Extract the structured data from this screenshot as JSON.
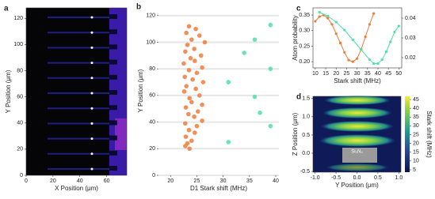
{
  "chart_data": [
    {
      "type": "heatmap",
      "panel": "a",
      "xlabel": "X Position (μm)",
      "ylabel": "Y Position (μm)",
      "xlim": [
        0,
        75
      ],
      "ylim": [
        0,
        128
      ],
      "xticks": [
        0,
        20,
        40,
        60
      ],
      "yticks": [
        0,
        20,
        40,
        60,
        80,
        100,
        120
      ]
    },
    {
      "type": "scatter",
      "panel": "b",
      "xlabel": "D1 Stark shift (MHz)",
      "ylabel": "Y Position (μm)",
      "xlim": [
        17.7,
        40.6
      ],
      "ylim": [
        0,
        127
      ],
      "xticks": [
        20,
        25,
        30,
        35,
        40
      ],
      "yticks": [
        0,
        20,
        40,
        60,
        80,
        100,
        120
      ],
      "grid": true,
      "series": [
        {
          "color": "#f07a3a",
          "x": [
            23.5,
            24.8,
            23,
            25.5,
            24,
            26.5,
            23.2,
            24.5,
            22.8,
            25.8,
            23.8,
            24.6,
            22.5,
            26,
            23.5,
            25,
            22.7,
            24.2,
            26.2,
            23,
            24.8,
            22.6,
            25.5,
            23.6,
            24,
            26,
            22.9,
            25.2,
            23.4,
            24.5,
            26,
            22.8,
            25,
            23.5,
            24.6,
            22.9,
            24,
            23.2,
            22.8,
            23.6
          ],
          "values": [
            112,
            110,
            107,
            105,
            102,
            100,
            98,
            95,
            93,
            90,
            88,
            86,
            84,
            81,
            79,
            77,
            74,
            72,
            70,
            67,
            65,
            63,
            60,
            58,
            55,
            53,
            51,
            48,
            46,
            44,
            41,
            39,
            37,
            34,
            32,
            29,
            26,
            24,
            22,
            20
          ]
        },
        {
          "color": "#4fe0a8",
          "x": [
            39,
            36,
            34,
            39,
            31,
            36,
            37,
            39,
            31
          ],
          "values": [
            113,
            102,
            92,
            80,
            70,
            59,
            47,
            37,
            25
          ]
        }
      ]
    },
    {
      "type": "line",
      "panel": "c",
      "xlabel": "Stark shift (MHz)",
      "ylabel": "Atom probability",
      "xlim": [
        8.9,
        51.4
      ],
      "ylim": [
        0.18,
        0.373
      ],
      "y2lim": [
        0.0148,
        0.0452
      ],
      "xticks": [
        10,
        15,
        20,
        25,
        30,
        35,
        40,
        45,
        50
      ],
      "yticks": [
        {
          "value": 0.2,
          "label": "0.20"
        },
        0.25,
        {
          "value": 0.3,
          "label": "0.30"
        },
        0.35
      ],
      "y2ticks": [
        0.02,
        0.03,
        0.04
      ],
      "series": [
        {
          "color": "#f07a3a",
          "x": [
            10,
            12,
            14,
            16,
            18,
            20,
            22,
            24,
            26,
            28,
            30,
            32,
            34,
            36,
            38
          ],
          "values": [
            0.33,
            0.345,
            0.35,
            0.34,
            0.32,
            0.29,
            0.26,
            0.23,
            0.205,
            0.2,
            0.21,
            0.24,
            0.28,
            0.32,
            0.355
          ]
        },
        {
          "color": "#4fe0a8",
          "axis": "y2",
          "x": [
            12,
            16,
            20,
            24,
            28,
            32,
            36,
            38,
            40,
            42,
            44,
            46,
            48,
            50
          ],
          "values": [
            0.043,
            0.041,
            0.038,
            0.034,
            0.029,
            0.024,
            0.019,
            0.017,
            0.017,
            0.019,
            0.023,
            0.028,
            0.033,
            0.036
          ]
        }
      ]
    },
    {
      "type": "heatmap",
      "panel": "d",
      "xlabel": "Y Position (μm)",
      "ylabel": "Z Position (μm)",
      "annotation": "Si₃N₄",
      "xlim": [
        -1.05,
        1.05
      ],
      "ylim": [
        -0.52,
        1.56
      ],
      "xticks": [
        {
          "value": -1,
          "label": "-1.0"
        },
        -0.5,
        {
          "value": 0,
          "label": "0.0"
        },
        0.5,
        {
          "value": 1,
          "label": "1.0"
        }
      ],
      "yticks": [
        -0.5,
        {
          "value": 0,
          "label": "0.0"
        },
        0.5,
        {
          "value": 1,
          "label": "1.0"
        },
        1.5
      ],
      "colorbar": {
        "label": "Stark shift (MHz)",
        "lim": [
          3.65,
          46.8
        ],
        "ticks": [
          5,
          10,
          15,
          20,
          25,
          30,
          35,
          40,
          45
        ]
      }
    }
  ]
}
